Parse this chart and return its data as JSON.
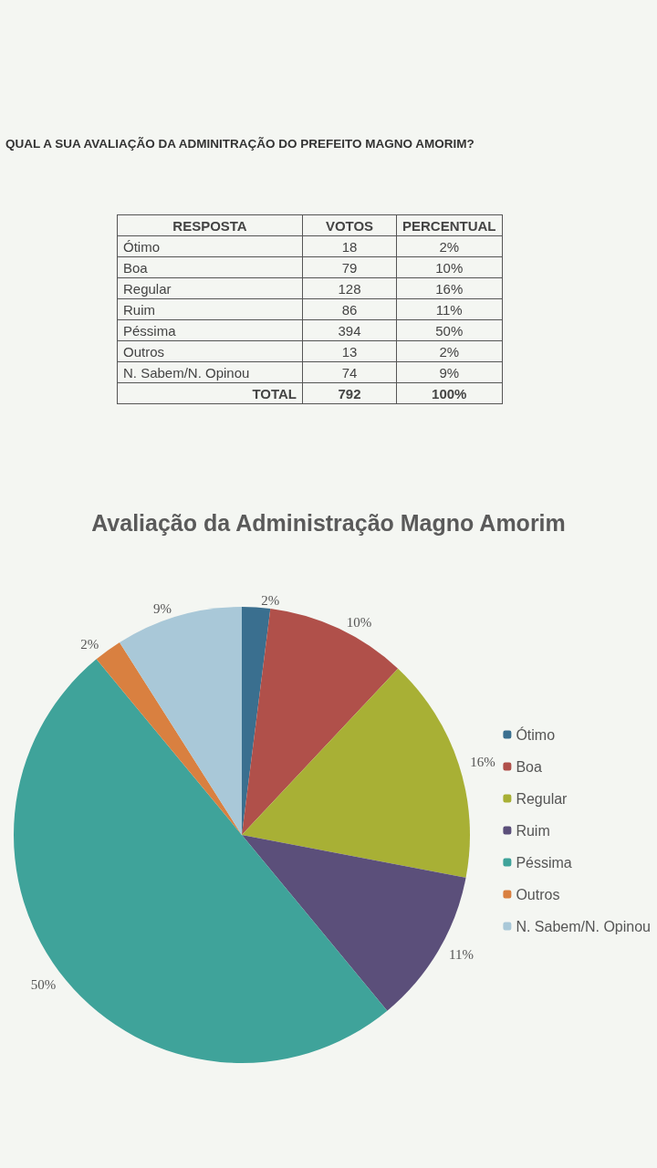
{
  "chart_data": [
    {
      "type": "other",
      "title": "QUAL A SUA AVALIAÇÃO DA ADMINITRAÇÃO DO PREFEITO MAGNO AMORIM?",
      "categories": [
        "Ótimo",
        "Boa",
        "Regular",
        "Ruim",
        "Péssima",
        "Outros",
        "N. Sabem/N. Opinou"
      ],
      "series": [
        {
          "name": "VOTOS",
          "values": [
            18,
            79,
            128,
            86,
            394,
            13,
            74
          ]
        },
        {
          "name": "PERCENTUAL",
          "values": [
            2,
            10,
            16,
            11,
            50,
            2,
            9
          ],
          "value_labels": [
            "2%",
            "10%",
            "16%",
            "11%",
            "50%",
            "2%",
            "9%"
          ]
        }
      ],
      "data_labels": true,
      "annotations": [
        "RESPOSTA",
        "TOTAL",
        "792",
        "100%"
      ]
    },
    {
      "type": "pie",
      "title": "Avaliação da Administração Magno Amorim",
      "categories": [
        "Ótimo",
        "Boa",
        "Regular",
        "Ruim",
        "Péssima",
        "Outros",
        "N. Sabem/N. Opinou"
      ],
      "values": [
        2,
        10,
        16,
        11,
        50,
        2,
        9
      ],
      "value_labels": [
        "2%",
        "10%",
        "16%",
        "11%",
        "50%",
        "2%",
        "9%"
      ],
      "colors": [
        "#3a6f8f",
        "#b0504a",
        "#a8b035",
        "#5b4f7a",
        "#3fa39a",
        "#d98040",
        "#a9c8d8"
      ],
      "legend": "right"
    }
  ]
}
